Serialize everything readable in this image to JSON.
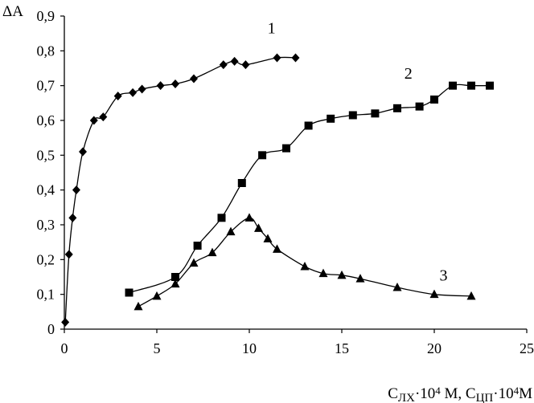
{
  "chart_data": {
    "type": "line",
    "ylabel": "ΔA",
    "xlabel": {
      "parts": [
        {
          "t": "C",
          "k": "base"
        },
        {
          "t": "ЛХ",
          "k": "sub"
        },
        {
          "t": "·10",
          "k": "base"
        },
        {
          "t": "4",
          "k": "sup"
        },
        {
          "t": " M, C",
          "k": "base"
        },
        {
          "t": "ЦП",
          "k": "sub"
        },
        {
          "t": "·10",
          "k": "base"
        },
        {
          "t": "4",
          "k": "sup"
        },
        {
          "t": "M",
          "k": "base"
        }
      ]
    },
    "xlim": [
      0,
      25
    ],
    "ylim": [
      0,
      0.9
    ],
    "x_ticks": [
      {
        "v": 0,
        "label": "0"
      },
      {
        "v": 5,
        "label": "5"
      },
      {
        "v": 10,
        "label": "10"
      },
      {
        "v": 15,
        "label": "15"
      },
      {
        "v": 20,
        "label": "20"
      },
      {
        "v": 25,
        "label": "25"
      }
    ],
    "y_ticks": [
      {
        "v": 0,
        "label": "0"
      },
      {
        "v": 0.1,
        "label": "0,1"
      },
      {
        "v": 0.2,
        "label": "0,2"
      },
      {
        "v": 0.3,
        "label": "0,3"
      },
      {
        "v": 0.4,
        "label": "0,4"
      },
      {
        "v": 0.5,
        "label": "0,5"
      },
      {
        "v": 0.6,
        "label": "0,6"
      },
      {
        "v": 0.7,
        "label": "0,7"
      },
      {
        "v": 0.8,
        "label": "0,8"
      },
      {
        "v": 0.9,
        "label": "0,9"
      }
    ],
    "grid": false,
    "legend": "none",
    "series": [
      {
        "label": "1",
        "marker": "diamond",
        "label_at": [
          11.2,
          0.85
        ],
        "x": [
          0.05,
          0.25,
          0.45,
          0.65,
          1.0,
          1.6,
          2.1,
          2.9,
          3.7,
          4.2,
          5.2,
          6.0,
          7.0,
          8.6,
          9.2,
          9.8,
          11.5,
          12.5
        ],
        "y": [
          0.02,
          0.215,
          0.32,
          0.4,
          0.51,
          0.6,
          0.61,
          0.67,
          0.68,
          0.69,
          0.7,
          0.705,
          0.72,
          0.76,
          0.77,
          0.76,
          0.78,
          0.78
        ]
      },
      {
        "label": "2",
        "marker": "square",
        "label_at": [
          18.6,
          0.72
        ],
        "x": [
          3.5,
          6.0,
          7.2,
          8.5,
          9.6,
          10.7,
          12.0,
          13.2,
          14.4,
          15.6,
          16.8,
          18.0,
          19.2,
          20.0,
          21.0,
          22.0,
          23.0
        ],
        "y": [
          0.105,
          0.15,
          0.24,
          0.32,
          0.42,
          0.5,
          0.52,
          0.585,
          0.605,
          0.615,
          0.62,
          0.635,
          0.64,
          0.66,
          0.7,
          0.7,
          0.7
        ]
      },
      {
        "label": "3",
        "marker": "triangle",
        "label_at": [
          20.5,
          0.14
        ],
        "x": [
          4.0,
          5.0,
          6.0,
          7.0,
          8.0,
          9.0,
          10.0,
          10.5,
          11.0,
          11.5,
          13.0,
          14.0,
          15.0,
          16.0,
          18.0,
          20.0,
          22.0
        ],
        "y": [
          0.065,
          0.095,
          0.13,
          0.19,
          0.22,
          0.28,
          0.32,
          0.29,
          0.26,
          0.23,
          0.18,
          0.16,
          0.155,
          0.145,
          0.12,
          0.1,
          0.095
        ]
      }
    ]
  }
}
